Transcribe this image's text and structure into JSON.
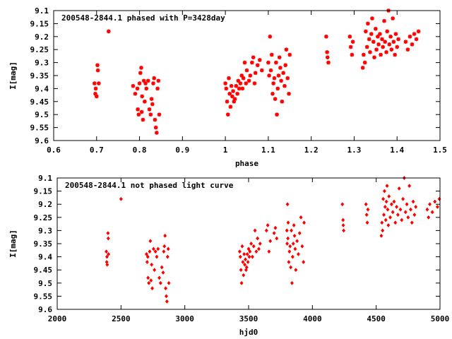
{
  "chart_data": [
    {
      "type": "scatter",
      "title": "200548-2844.1 phased with P=3428day",
      "xlabel": "phase",
      "ylabel": "I[mag]",
      "xlim": [
        0.6,
        1.5
      ],
      "ylim": [
        9.6,
        9.1
      ],
      "y_inverted": true,
      "grid": false,
      "marker_color": "#ff0000",
      "marker": "star",
      "xticks": [
        "0.6",
        "0.7",
        "0.8",
        "0.9",
        "1",
        "1.1",
        "1.2",
        "1.3",
        "1.4",
        "1.5"
      ],
      "yticks": [
        "9.1",
        "9.15",
        "9.2",
        "9.25",
        "9.3",
        "9.35",
        "9.4",
        "9.45",
        "9.5",
        "9.55",
        "9.6"
      ],
      "points": [
        [
          0.695,
          9.38
        ],
        [
          0.697,
          9.42
        ],
        [
          0.698,
          9.4
        ],
        [
          0.7,
          9.43
        ],
        [
          0.702,
          9.31
        ],
        [
          0.703,
          9.33
        ],
        [
          0.705,
          9.38
        ],
        [
          0.728,
          9.18
        ],
        [
          0.785,
          9.39
        ],
        [
          0.79,
          9.42
        ],
        [
          0.795,
          9.4
        ],
        [
          0.796,
          9.48
        ],
        [
          0.798,
          9.5
        ],
        [
          0.8,
          9.38
        ],
        [
          0.802,
          9.34
        ],
        [
          0.804,
          9.32
        ],
        [
          0.805,
          9.49
        ],
        [
          0.806,
          9.43
        ],
        [
          0.808,
          9.52
        ],
        [
          0.81,
          9.37
        ],
        [
          0.812,
          9.45
        ],
        [
          0.814,
          9.38
        ],
        [
          0.816,
          9.4
        ],
        [
          0.82,
          9.37
        ],
        [
          0.823,
          9.48
        ],
        [
          0.826,
          9.5
        ],
        [
          0.828,
          9.44
        ],
        [
          0.83,
          9.46
        ],
        [
          0.832,
          9.38
        ],
        [
          0.834,
          9.36
        ],
        [
          0.836,
          9.52
        ],
        [
          0.838,
          9.55
        ],
        [
          0.84,
          9.57
        ],
        [
          0.842,
          9.4
        ],
        [
          0.844,
          9.37
        ],
        [
          0.846,
          9.5
        ],
        [
          1.0,
          9.38
        ],
        [
          1.002,
          9.4
        ],
        [
          1.004,
          9.45
        ],
        [
          1.006,
          9.5
        ],
        [
          1.008,
          9.36
        ],
        [
          1.01,
          9.42
        ],
        [
          1.012,
          9.47
        ],
        [
          1.014,
          9.39
        ],
        [
          1.016,
          9.43
        ],
        [
          1.018,
          9.41
        ],
        [
          1.02,
          9.45
        ],
        [
          1.022,
          9.44
        ],
        [
          1.025,
          9.39
        ],
        [
          1.028,
          9.42
        ],
        [
          1.03,
          9.37
        ],
        [
          1.032,
          9.4
        ],
        [
          1.035,
          9.38
        ],
        [
          1.038,
          9.35
        ],
        [
          1.04,
          9.4
        ],
        [
          1.042,
          9.36
        ],
        [
          1.045,
          9.3
        ],
        [
          1.048,
          9.38
        ],
        [
          1.05,
          9.33
        ],
        [
          1.055,
          9.37
        ],
        [
          1.058,
          9.35
        ],
        [
          1.062,
          9.3
        ],
        [
          1.065,
          9.28
        ],
        [
          1.068,
          9.38
        ],
        [
          1.07,
          9.34
        ],
        [
          1.075,
          9.31
        ],
        [
          1.08,
          9.29
        ],
        [
          1.085,
          9.33
        ],
        [
          1.1,
          9.3
        ],
        [
          1.102,
          9.35
        ],
        [
          1.104,
          9.2
        ],
        [
          1.106,
          9.33
        ],
        [
          1.108,
          9.27
        ],
        [
          1.11,
          9.42
        ],
        [
          1.112,
          9.38
        ],
        [
          1.114,
          9.36
        ],
        [
          1.116,
          9.44
        ],
        [
          1.118,
          9.3
        ],
        [
          1.12,
          9.5
        ],
        [
          1.122,
          9.4
        ],
        [
          1.124,
          9.35
        ],
        [
          1.126,
          9.28
        ],
        [
          1.128,
          9.32
        ],
        [
          1.13,
          9.37
        ],
        [
          1.132,
          9.45
        ],
        [
          1.135,
          9.34
        ],
        [
          1.138,
          9.39
        ],
        [
          1.14,
          9.31
        ],
        [
          1.142,
          9.25
        ],
        [
          1.145,
          9.36
        ],
        [
          1.148,
          9.42
        ],
        [
          1.15,
          9.27
        ],
        [
          1.235,
          9.2
        ],
        [
          1.237,
          9.26
        ],
        [
          1.238,
          9.28
        ],
        [
          1.24,
          9.3
        ],
        [
          1.29,
          9.2
        ],
        [
          1.292,
          9.24
        ],
        [
          1.295,
          9.27
        ],
        [
          1.297,
          9.22
        ],
        [
          1.32,
          9.32
        ],
        [
          1.322,
          9.27
        ],
        [
          1.325,
          9.3
        ],
        [
          1.327,
          9.18
        ],
        [
          1.33,
          9.24
        ],
        [
          1.332,
          9.15
        ],
        [
          1.335,
          9.21
        ],
        [
          1.337,
          9.26
        ],
        [
          1.34,
          9.19
        ],
        [
          1.342,
          9.13
        ],
        [
          1.345,
          9.22
        ],
        [
          1.347,
          9.28
        ],
        [
          1.35,
          9.17
        ],
        [
          1.352,
          9.25
        ],
        [
          1.355,
          9.2
        ],
        [
          1.357,
          9.23
        ],
        [
          1.36,
          9.19
        ],
        [
          1.362,
          9.27
        ],
        [
          1.365,
          9.21
        ],
        [
          1.367,
          9.24
        ],
        [
          1.37,
          9.14
        ],
        [
          1.372,
          9.22
        ],
        [
          1.375,
          9.26
        ],
        [
          1.377,
          9.18
        ],
        [
          1.38,
          9.1
        ],
        [
          1.382,
          9.23
        ],
        [
          1.385,
          9.2
        ],
        [
          1.387,
          9.25
        ],
        [
          1.39,
          9.13
        ],
        [
          1.392,
          9.22
        ],
        [
          1.395,
          9.27
        ],
        [
          1.397,
          9.19
        ],
        [
          1.4,
          9.24
        ],
        [
          1.403,
          9.21
        ],
        [
          1.42,
          9.22
        ],
        [
          1.425,
          9.25
        ],
        [
          1.43,
          9.2
        ],
        [
          1.435,
          9.23
        ],
        [
          1.44,
          9.19
        ],
        [
          1.445,
          9.21
        ],
        [
          1.45,
          9.18
        ]
      ]
    },
    {
      "type": "scatter",
      "title": "200548-2844.1 not phased light curve",
      "xlabel": "hjd0",
      "ylabel": "I[mag]",
      "xlim": [
        2000,
        5000
      ],
      "ylim": [
        9.6,
        9.1
      ],
      "y_inverted": true,
      "grid": false,
      "marker_color": "#ff0000",
      "marker": "diamond",
      "xticks": [
        "2000",
        "2500",
        "3000",
        "3500",
        "4000",
        "4500",
        "5000"
      ],
      "yticks": [
        "9.1",
        "9.15",
        "9.2",
        "9.25",
        "9.3",
        "9.35",
        "9.4",
        "9.45",
        "9.5",
        "9.55",
        "9.6"
      ],
      "points": [
        [
          2385,
          9.38
        ],
        [
          2388,
          9.42
        ],
        [
          2390,
          9.4
        ],
        [
          2392,
          9.43
        ],
        [
          2398,
          9.31
        ],
        [
          2400,
          9.33
        ],
        [
          2402,
          9.39
        ],
        [
          2500,
          9.18
        ],
        [
          2700,
          9.39
        ],
        [
          2705,
          9.42
        ],
        [
          2710,
          9.4
        ],
        [
          2712,
          9.48
        ],
        [
          2718,
          9.5
        ],
        [
          2725,
          9.38
        ],
        [
          2730,
          9.34
        ],
        [
          2735,
          9.49
        ],
        [
          2740,
          9.43
        ],
        [
          2745,
          9.52
        ],
        [
          2755,
          9.37
        ],
        [
          2762,
          9.45
        ],
        [
          2770,
          9.38
        ],
        [
          2780,
          9.4
        ],
        [
          2790,
          9.37
        ],
        [
          2800,
          9.48
        ],
        [
          2810,
          9.5
        ],
        [
          2820,
          9.44
        ],
        [
          2830,
          9.46
        ],
        [
          2835,
          9.38
        ],
        [
          2840,
          9.36
        ],
        [
          2850,
          9.52
        ],
        [
          2855,
          9.55
        ],
        [
          2860,
          9.57
        ],
        [
          2865,
          9.4
        ],
        [
          2870,
          9.37
        ],
        [
          2875,
          9.5
        ],
        [
          2845,
          9.32
        ],
        [
          3430,
          9.38
        ],
        [
          3435,
          9.4
        ],
        [
          3440,
          9.45
        ],
        [
          3445,
          9.5
        ],
        [
          3450,
          9.36
        ],
        [
          3455,
          9.42
        ],
        [
          3460,
          9.47
        ],
        [
          3465,
          9.39
        ],
        [
          3470,
          9.43
        ],
        [
          3475,
          9.41
        ],
        [
          3480,
          9.45
        ],
        [
          3485,
          9.44
        ],
        [
          3490,
          9.39
        ],
        [
          3495,
          9.42
        ],
        [
          3500,
          9.37
        ],
        [
          3505,
          9.4
        ],
        [
          3510,
          9.38
        ],
        [
          3520,
          9.35
        ],
        [
          3530,
          9.4
        ],
        [
          3540,
          9.36
        ],
        [
          3550,
          9.3
        ],
        [
          3560,
          9.38
        ],
        [
          3570,
          9.33
        ],
        [
          3580,
          9.37
        ],
        [
          3590,
          9.35
        ],
        [
          3640,
          9.3
        ],
        [
          3650,
          9.28
        ],
        [
          3660,
          9.38
        ],
        [
          3670,
          9.34
        ],
        [
          3700,
          9.31
        ],
        [
          3710,
          9.29
        ],
        [
          3720,
          9.33
        ],
        [
          3800,
          9.3
        ],
        [
          3802,
          9.35
        ],
        [
          3805,
          9.2
        ],
        [
          3808,
          9.33
        ],
        [
          3810,
          9.27
        ],
        [
          3815,
          9.42
        ],
        [
          3820,
          9.38
        ],
        [
          3825,
          9.36
        ],
        [
          3830,
          9.44
        ],
        [
          3835,
          9.3
        ],
        [
          3840,
          9.5
        ],
        [
          3845,
          9.4
        ],
        [
          3850,
          9.35
        ],
        [
          3855,
          9.28
        ],
        [
          3860,
          9.32
        ],
        [
          3865,
          9.37
        ],
        [
          3870,
          9.45
        ],
        [
          3880,
          9.34
        ],
        [
          3890,
          9.39
        ],
        [
          3900,
          9.31
        ],
        [
          3910,
          9.25
        ],
        [
          3920,
          9.36
        ],
        [
          3930,
          9.42
        ],
        [
          3935,
          9.27
        ],
        [
          4235,
          9.2
        ],
        [
          4240,
          9.26
        ],
        [
          4242,
          9.28
        ],
        [
          4245,
          9.3
        ],
        [
          4420,
          9.2
        ],
        [
          4425,
          9.24
        ],
        [
          4430,
          9.27
        ],
        [
          4435,
          9.22
        ],
        [
          4540,
          9.32
        ],
        [
          4545,
          9.27
        ],
        [
          4550,
          9.3
        ],
        [
          4555,
          9.18
        ],
        [
          4560,
          9.24
        ],
        [
          4565,
          9.15
        ],
        [
          4570,
          9.21
        ],
        [
          4575,
          9.26
        ],
        [
          4580,
          9.19
        ],
        [
          4585,
          9.13
        ],
        [
          4590,
          9.22
        ],
        [
          4595,
          9.28
        ],
        [
          4600,
          9.17
        ],
        [
          4610,
          9.25
        ],
        [
          4620,
          9.2
        ],
        [
          4630,
          9.23
        ],
        [
          4640,
          9.19
        ],
        [
          4650,
          9.27
        ],
        [
          4660,
          9.21
        ],
        [
          4670,
          9.24
        ],
        [
          4680,
          9.14
        ],
        [
          4690,
          9.22
        ],
        [
          4700,
          9.26
        ],
        [
          4710,
          9.18
        ],
        [
          4720,
          9.1
        ],
        [
          4730,
          9.23
        ],
        [
          4740,
          9.2
        ],
        [
          4750,
          9.25
        ],
        [
          4760,
          9.13
        ],
        [
          4770,
          9.22
        ],
        [
          4780,
          9.27
        ],
        [
          4790,
          9.19
        ],
        [
          4800,
          9.24
        ],
        [
          4810,
          9.21
        ],
        [
          4900,
          9.22
        ],
        [
          4910,
          9.25
        ],
        [
          4920,
          9.2
        ],
        [
          4940,
          9.23
        ],
        [
          4960,
          9.19
        ],
        [
          4980,
          9.21
        ],
        [
          4995,
          9.18
        ]
      ]
    }
  ]
}
